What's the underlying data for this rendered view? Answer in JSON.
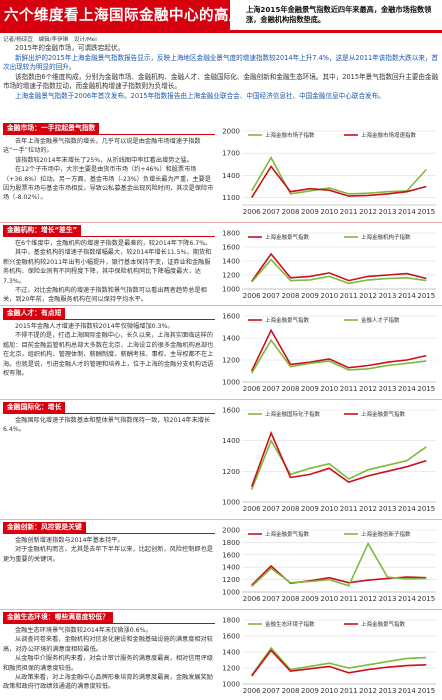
{
  "header": {
    "title": "六个维度看上海国际金融中心的高度",
    "subtitle": "上海2015年金融景气指数近四年来最高，金融市场指数领涨，金融机构指数垫底。",
    "credit": "记者/杨琼宜　编辑/李伊琳　设计/Mel"
  },
  "intro": {
    "p1": "2015年的金融市场，可谓跌宕起伏。",
    "p2": "新鲜出炉的2015年上海金融景气指数报告显示，反映上海地区金融业景气度的增速指数较2014年上升7.4%，这是从2011年该指数大跌以来，首次出现较为明显的回升。",
    "p3": "该指数由6个维度构成，分别为金融市场、金融机构、金融人才、金融国际化、金融创新和金融生态环境。其中，2015年景气指数回升主要由金融市场的增速子指数拉动，而金融机构增速子指数则为负增长。",
    "p4": "上海金融景气指数于2006年首次发布。2015年指数报告由上海金融业联合会、中国经济信息社、中国金融信息中心联合发布。"
  },
  "sections": [
    {
      "tag": "金融市场：一手拉起景气指数",
      "text": [
        "去年上海金融景气指数的增长，几乎可以说是由金融市场增速子指数这“一手”拉动的。",
        "该指数较2014年末增长了25%，从折线图中率红看出增势之猛。",
        "在12个子市场中，大宗主要是由货币市场（约+46%）和股票市场（+36.8%）拉动。另一方面，基金市场（-23%）负增长最为严重，主要是因为股票市场与基金市场相反，导致公私募基金出现风险时间，其次是保险市场（-8.02%）。"
      ],
      "chart_data": {
        "type": "line",
        "x": [
          "2006",
          "2007",
          "2008",
          "2009",
          "2010",
          "2011",
          "2012",
          "2013",
          "2014",
          "2015"
        ],
        "ylim": [
          1000,
          2000
        ],
        "yticks": [
          1100,
          1400,
          1700,
          2000
        ],
        "series": [
          {
            "name": "上海金融市场子指数",
            "color": "#7dba3a",
            "values": [
              1190,
              1640,
              1150,
              1190,
              1230,
              1150,
              1160,
              1180,
              1190,
              1480
            ]
          },
          {
            "name": "上海金融市场增速指数",
            "color": "#c8101e",
            "values": [
              1100,
              1520,
              1180,
              1220,
              1200,
              1120,
              1130,
              1150,
              1180,
              1250
            ]
          }
        ]
      }
    },
    {
      "tag": "金融机构：增长“差生”",
      "text": [
        "在6个维度中，金融机构的增速子指数是最差的，较2014年下降6.7%。",
        "其中，基金机构的增速子指数增幅最大，较2014年增长11.5%，期货和新兴金融机构较2011年出有小幅提升，银行基本保持不变，证券业和金融服务机构、保险业则有不同程度下降，其中保险机构同比下降幅度最大，达7.3%。",
        "不过，对比金融机构的增速子指数和景气指数可以看出两者趋势总是相关，到20年前，金融服务机构在间以保持平均水平。"
      ],
      "chart_data": {
        "type": "line",
        "x": [
          "2006",
          "2007",
          "2008",
          "2009",
          "2010",
          "2011",
          "2012",
          "2013",
          "2014",
          "2015"
        ],
        "ylim": [
          1000,
          1800
        ],
        "yticks": [
          1000,
          1200,
          1400,
          1600,
          1800
        ],
        "series": [
          {
            "name": "上海金融景气指数",
            "color": "#c8101e",
            "values": [
              1110,
              1500,
              1160,
              1180,
              1230,
              1120,
              1180,
              1200,
              1220,
              1150
            ]
          },
          {
            "name": "上海金融机构子指数",
            "color": "#7dba3a",
            "values": [
              1100,
              1420,
              1120,
              1130,
              1180,
              1080,
              1130,
              1150,
              1160,
              1120
            ]
          }
        ]
      }
    },
    {
      "tag": "金融人才：有点短",
      "text": [
        "2015年金融人才增速子指数较2014年仅微幅增加0.3%。",
        "不得不提的是，打造上海国际金融中心，长久以来，上海其实面临这样的尴尬：目前金融监管机构总部大多数在北京，上海设立的很多金融机构总部也在北京，组织机构、管理体制、薪酬制度、薪酬考核、事权、主导权都不在上海。也就是说，引进金融人才的管理和培养上，位于上海的金融分支机构话语权有限。"
      ],
      "chart_data": {
        "type": "line",
        "x": [
          "2006",
          "2007",
          "2008",
          "2009",
          "2010",
          "2011",
          "2012",
          "2013",
          "2014",
          "2015"
        ],
        "ylim": [
          1000,
          1600
        ],
        "yticks": [
          1000,
          1200,
          1400,
          1600
        ],
        "series": [
          {
            "name": "上海金融景气指数",
            "color": "#c8101e",
            "values": [
              1100,
              1470,
              1160,
              1180,
              1210,
              1130,
              1150,
              1180,
              1200,
              1240
            ]
          },
          {
            "name": "金融人才子指数",
            "color": "#7dba3a",
            "values": [
              1080,
              1380,
              1140,
              1170,
              1190,
              1110,
              1120,
              1150,
              1170,
              1190
            ]
          }
        ]
      }
    },
    {
      "tag": "金融国际化：增长",
      "text": [
        "金融国际化增速子指数基本和整体景气指数保持一致，较2014年末增长6.4%。"
      ],
      "chart_data": {
        "type": "line",
        "x": [
          "2006",
          "2007",
          "2008",
          "2009",
          "2010",
          "2011",
          "2012",
          "2013",
          "2014",
          "2015"
        ],
        "ylim": [
          1000,
          1600
        ],
        "yticks": [
          1000,
          1200,
          1400,
          1600
        ],
        "series": [
          {
            "name": "上海金融国际化子指数",
            "color": "#7dba3a",
            "values": [
              1080,
              1400,
              1180,
              1220,
              1250,
              1150,
              1210,
              1240,
              1270,
              1360
            ]
          },
          {
            "name": "上海金融景气指数",
            "color": "#c8101e",
            "values": [
              1100,
              1450,
              1160,
              1180,
              1220,
              1130,
              1170,
              1200,
              1230,
              1270
            ]
          }
        ]
      }
    },
    {
      "tag": "金融创新：风控要是关键",
      "text": [
        "金融创新增速指数与2014年基本持平。",
        "对于金融机构而言，尤其是去年下半年以来，比起创新，风险控制即也是更为重要的关键词。"
      ],
      "chart_data": {
        "type": "line",
        "x": [
          "2006",
          "2007",
          "2008",
          "2009",
          "2010",
          "2011",
          "2012",
          "2013",
          "2014",
          "2015"
        ],
        "ylim": [
          1000,
          2000
        ],
        "yticks": [
          1000,
          1200,
          1400,
          1600,
          1800,
          2000
        ],
        "series": [
          {
            "name": "上海金融景气指数",
            "color": "#c8101e",
            "values": [
              1110,
              1420,
              1140,
              1180,
              1230,
              1150,
              1190,
              1220,
              1240,
              1230
            ]
          },
          {
            "name": "上海金融创新子指数",
            "color": "#7dba3a",
            "values": [
              1090,
              1380,
              1150,
              1170,
              1200,
              1100,
              1780,
              1240,
              1210,
              1220
            ]
          }
        ]
      }
    },
    {
      "tag": "金融生态环境：哪些满意度较低？",
      "text": [
        "金融生态环境景气指数较2014年末仅微涨0.6%。",
        "从调查问卷来看，金融机构对信息化建设和金融基础设施的满意度相对较高，对办公环境的满意度相较最低。",
        "从金融中介服务机构来看，对会计审计服务的满意度最高，相对信用评级和融资担保的满意度较低。",
        "从政策来看，对上海金融中心品牌形象培育的满意度最高，金融发展奖励政策和政府行政绩效通道的满意度较低。"
      ],
      "chart_data": {
        "type": "line",
        "x": [
          "2006",
          "2007",
          "2008",
          "2009",
          "2010",
          "2011",
          "2012",
          "2013",
          "2014",
          "2015"
        ],
        "ylim": [
          1000,
          1800
        ],
        "yticks": [
          1000,
          1200,
          1400,
          1600,
          1800
        ],
        "series": [
          {
            "name": "金融生态环境子指数",
            "color": "#7dba3a",
            "values": [
              1110,
              1450,
              1180,
              1220,
              1260,
              1200,
              1240,
              1280,
              1320,
              1330
            ]
          },
          {
            "name": "上海金融景气指数",
            "color": "#c8101e",
            "values": [
              1100,
              1420,
              1160,
              1190,
              1220,
              1140,
              1180,
              1210,
              1230,
              1240
            ]
          }
        ]
      }
    }
  ]
}
